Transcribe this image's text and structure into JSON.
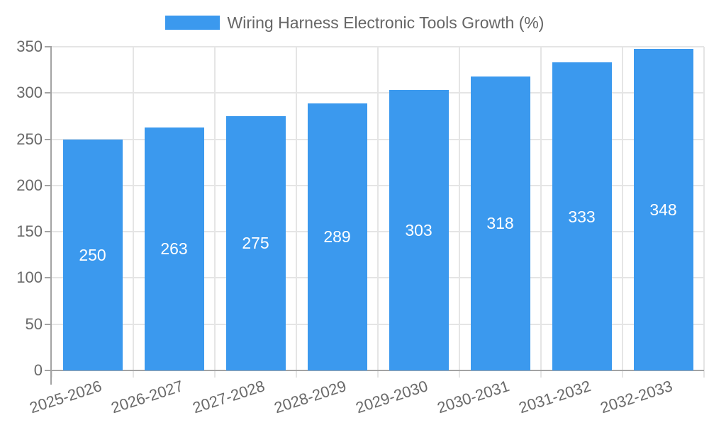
{
  "chart_data": {
    "type": "bar",
    "title": "Wiring Harness Electronic Tools Growth (%)",
    "legend": [
      {
        "label": "Wiring Harness Electronic Tools Growth (%)",
        "color": "#3B99EE"
      }
    ],
    "legend_position": "top-center",
    "categories": [
      "2025-2026",
      "2026-2027",
      "2027-2028",
      "2028-2029",
      "2029-2030",
      "2030-2031",
      "2031-2032",
      "2032-2033"
    ],
    "values": [
      250,
      263,
      275,
      289,
      303,
      318,
      333,
      348
    ],
    "xlabel": "",
    "ylabel": "",
    "ylim": [
      0,
      350
    ],
    "yticks": [
      0,
      50,
      100,
      150,
      200,
      250,
      300,
      350
    ],
    "grid": "on",
    "value_labels_inside_bars": true,
    "colors": {
      "bar": "#3B99EE",
      "grid": "#E5E5E5",
      "axis": "#A3A3A3",
      "tick_text": "#696969",
      "value_text": "#FFFFFF",
      "background": "#FFFFFF"
    }
  }
}
